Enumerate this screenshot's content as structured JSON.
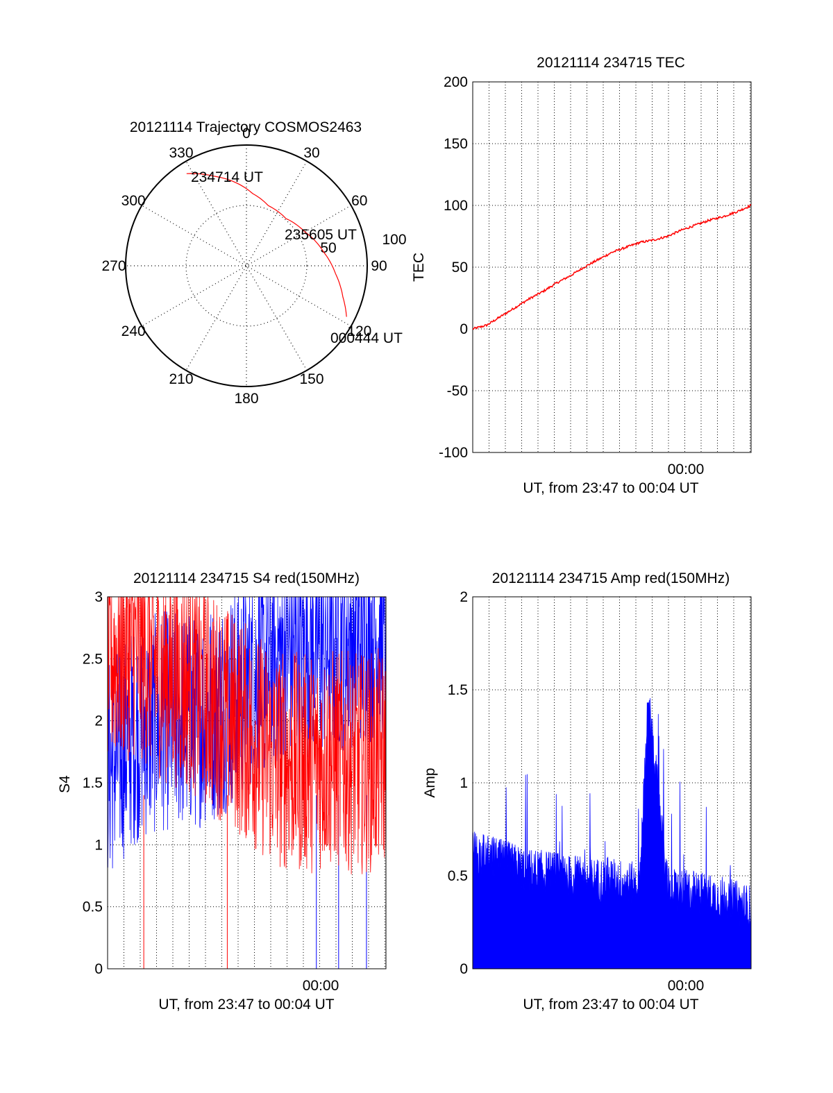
{
  "colors": {
    "red": "#ff0000",
    "blue": "#0000ff",
    "axis": "#000000"
  },
  "chart_data": [
    {
      "id": "trajectory",
      "type": "polar",
      "title": "20121114 Trajectory COSMOS2463",
      "azimuth_labels": [
        "0",
        "30",
        "60",
        "90",
        "120",
        "150",
        "180",
        "210",
        "240",
        "270",
        "300",
        "330"
      ],
      "radial_labels": [
        "50",
        "100"
      ],
      "grid": true,
      "track": {
        "color": "red",
        "points": [
          {
            "az": 327,
            "r": 91
          },
          {
            "az": 340,
            "r": 79
          },
          {
            "az": 352,
            "r": 70
          },
          {
            "az": 5,
            "r": 60
          },
          {
            "az": 20,
            "r": 53
          },
          {
            "az": 40,
            "r": 51
          },
          {
            "az": 60,
            "r": 56
          },
          {
            "az": 80,
            "r": 65
          },
          {
            "az": 95,
            "r": 74
          },
          {
            "az": 108,
            "r": 84
          },
          {
            "az": 117,
            "r": 93
          }
        ]
      },
      "annotations": [
        "234714 UT",
        "235605 UT",
        "000444 UT"
      ]
    },
    {
      "id": "tec",
      "type": "line",
      "title": "20121114 234715 TEC",
      "ylabel": "TEC",
      "xlabel": "UT, from 23:47 to 00:04 UT",
      "x_tick_label": "00:00",
      "ylim": [
        -100,
        200
      ],
      "yticks": [
        "200",
        "150",
        "100",
        "50",
        "0",
        "-50",
        "-100"
      ],
      "grid": true,
      "series": [
        {
          "color": "red",
          "x": [
            0,
            0.05,
            0.1,
            0.15,
            0.2,
            0.25,
            0.3,
            0.35,
            0.4,
            0.45,
            0.5,
            0.55,
            0.6,
            0.65,
            0.7,
            0.75,
            0.8,
            0.85,
            0.9,
            0.95,
            1.0
          ],
          "values": [
            0,
            3,
            10,
            17,
            24,
            30,
            37,
            43,
            50,
            56,
            62,
            66,
            70,
            72,
            75,
            80,
            84,
            88,
            91,
            95,
            100
          ]
        }
      ]
    },
    {
      "id": "s4",
      "type": "line",
      "title": "20121114 234715 S4 red(150MHz)",
      "ylabel": "S4",
      "xlabel": "UT, from 23:47 to 00:04 UT",
      "x_tick_label": "00:00",
      "ylim": [
        0,
        3
      ],
      "yticks": [
        "3",
        "2.5",
        "2",
        "1.5",
        "1",
        "0.5",
        "0"
      ],
      "grid": true,
      "series": [
        {
          "color": "red",
          "x": [
            0,
            0.1,
            0.2,
            0.3,
            0.4,
            0.5,
            0.6,
            0.7,
            0.8,
            0.9,
            1.0
          ],
          "values": [
            2.5,
            2.6,
            2.4,
            2.3,
            2.1,
            1.9,
            1.7,
            1.65,
            1.7,
            1.65,
            1.7
          ]
        },
        {
          "color": "blue",
          "x": [
            0,
            0.1,
            0.2,
            0.3,
            0.4,
            0.5,
            0.6,
            0.7,
            0.8,
            0.9,
            1.0
          ],
          "values": [
            1.6,
            1.9,
            2.0,
            2.0,
            2.1,
            2.3,
            2.5,
            2.6,
            2.6,
            2.7,
            2.7
          ]
        }
      ]
    },
    {
      "id": "amp",
      "type": "line",
      "title": "20121114 234715 Amp red(150MHz)",
      "ylabel": "Amp",
      "xlabel": "UT, from 23:47 to 00:04 UT",
      "x_tick_label": "00:00",
      "ylim": [
        0,
        2
      ],
      "yticks": [
        "2",
        "1.5",
        "1",
        "0.5",
        "0"
      ],
      "grid": true,
      "series": [
        {
          "color": "blue",
          "x": [
            0,
            0.1,
            0.2,
            0.3,
            0.4,
            0.5,
            0.6,
            0.63,
            0.7,
            0.8,
            0.9,
            1.0
          ],
          "values": [
            0.6,
            0.55,
            0.5,
            0.48,
            0.45,
            0.45,
            0.42,
            1.43,
            0.4,
            0.38,
            0.35,
            0.3
          ]
        }
      ]
    }
  ]
}
